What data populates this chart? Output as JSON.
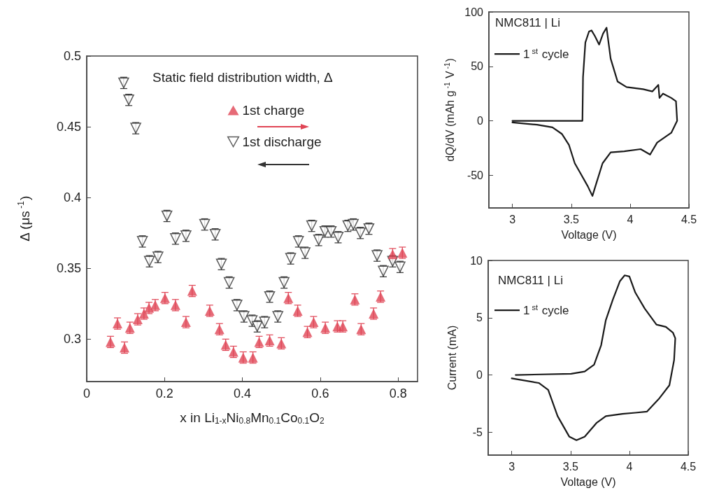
{
  "chart_data": [
    {
      "type": "scatter",
      "xlabel": "x in Li$_{1-x}$Ni$_{0.8}$Mn$_{0.1}$Co$_{0.1}$O$_{2}$",
      "ylabel": "Δ (μs$^{-1}$)",
      "annotations": [
        "Static field distribution width, Δ"
      ],
      "xlim": [
        0,
        0.85
      ],
      "xticks": [
        0,
        0.2,
        0.4,
        0.6,
        0.8
      ],
      "ylim": [
        0.27,
        0.5
      ],
      "yticks": [
        0.3,
        0.35,
        0.4,
        0.45,
        0.5
      ],
      "grid": false,
      "legend": "top right",
      "series": [
        {
          "name": "1st charge",
          "color": "#e04555",
          "marker": "triangle",
          "x": [
            0.061,
            0.079,
            0.097,
            0.111,
            0.131,
            0.147,
            0.16,
            0.176,
            0.201,
            0.228,
            0.255,
            0.271,
            0.316,
            0.341,
            0.357,
            0.377,
            0.402,
            0.427,
            0.443,
            0.47,
            0.5,
            0.518,
            0.542,
            0.567,
            0.583,
            0.613,
            0.644,
            0.658,
            0.689,
            0.705,
            0.737,
            0.755,
            0.786,
            0.811
          ],
          "values": [
            0.298,
            0.311,
            0.294,
            0.308,
            0.314,
            0.318,
            0.322,
            0.324,
            0.329,
            0.324,
            0.312,
            0.334,
            0.32,
            0.307,
            0.296,
            0.291,
            0.287,
            0.287,
            0.298,
            0.299,
            0.297,
            0.329,
            0.32,
            0.305,
            0.312,
            0.308,
            0.309,
            0.309,
            0.328,
            0.307,
            0.318,
            0.33,
            0.36,
            0.361
          ],
          "errors": [
            0.004,
            0.004,
            0.004,
            0.004,
            0.004,
            0.004,
            0.004,
            0.004,
            0.004,
            0.004,
            0.004,
            0.004,
            0.004,
            0.004,
            0.004,
            0.004,
            0.004,
            0.004,
            0.004,
            0.004,
            0.004,
            0.004,
            0.004,
            0.004,
            0.004,
            0.004,
            0.004,
            0.004,
            0.004,
            0.004,
            0.004,
            0.004,
            0.004,
            0.004
          ]
        },
        {
          "name": "1st discharge",
          "color": "#333333",
          "marker": "triangle-down",
          "x": [
            0.095,
            0.108,
            0.126,
            0.143,
            0.161,
            0.183,
            0.206,
            0.228,
            0.255,
            0.303,
            0.33,
            0.346,
            0.366,
            0.386,
            0.404,
            0.425,
            0.438,
            0.457,
            0.47,
            0.491,
            0.507,
            0.524,
            0.544,
            0.561,
            0.578,
            0.596,
            0.612,
            0.628,
            0.646,
            0.671,
            0.685,
            0.703,
            0.725,
            0.746,
            0.762,
            0.786,
            0.805
          ],
          "values": [
            0.481,
            0.469,
            0.449,
            0.369,
            0.355,
            0.358,
            0.387,
            0.371,
            0.373,
            0.381,
            0.374,
            0.353,
            0.34,
            0.324,
            0.316,
            0.313,
            0.309,
            0.312,
            0.33,
            0.316,
            0.34,
            0.357,
            0.369,
            0.361,
            0.38,
            0.37,
            0.376,
            0.376,
            0.372,
            0.38,
            0.381,
            0.375,
            0.378,
            0.359,
            0.348,
            0.355,
            0.351
          ],
          "errors": [
            0.004,
            0.004,
            0.004,
            0.004,
            0.004,
            0.004,
            0.004,
            0.004,
            0.004,
            0.004,
            0.004,
            0.004,
            0.004,
            0.004,
            0.004,
            0.004,
            0.004,
            0.004,
            0.004,
            0.004,
            0.004,
            0.004,
            0.004,
            0.004,
            0.004,
            0.004,
            0.004,
            0.004,
            0.004,
            0.004,
            0.004,
            0.004,
            0.004,
            0.004,
            0.004,
            0.004,
            0.004
          ]
        }
      ]
    },
    {
      "type": "line",
      "xlabel": "Voltage (V)",
      "ylabel": "dQ/dV (mAh g$^{-1}$ V$^{-1}$)",
      "annotations": [
        "NMC811 | Li"
      ],
      "xlim": [
        2.8,
        4.5
      ],
      "xticks": [
        3,
        3.5,
        4,
        4.5
      ],
      "ylim": [
        -80,
        100
      ],
      "yticks": [
        -50,
        0,
        50,
        100
      ],
      "grid": false,
      "legend": "top left",
      "marker": "none",
      "line_style": "solid",
      "series": [
        {
          "name": "1$^{st}$ cycle",
          "color": "#1a1a1a",
          "x": [
            3.0,
            3.3,
            3.595,
            3.6,
            3.62,
            3.651,
            3.672,
            3.7,
            3.737,
            3.77,
            3.8,
            3.835,
            3.894,
            3.97,
            4.11,
            4.19,
            4.24,
            4.25,
            4.28,
            4.35,
            4.39,
            4.4,
            4.35,
            4.23,
            4.17,
            4.09,
            3.95,
            3.835,
            3.766,
            3.717,
            3.68,
            3.64,
            3.58,
            3.53,
            3.48,
            3.42,
            3.34,
            3.21,
            3.0
          ],
          "values": [
            0,
            0,
            0,
            40,
            72,
            82,
            83,
            78,
            70,
            80,
            85.5,
            57,
            36,
            31,
            29,
            27,
            33,
            21,
            25,
            21,
            18,
            0,
            -11,
            -20,
            -31,
            -26,
            -28,
            -29,
            -39,
            -56,
            -69,
            -60,
            -48.5,
            -39,
            -22,
            -12,
            -6,
            -3.6,
            -1.5
          ]
        }
      ]
    },
    {
      "type": "line",
      "xlabel": "Voltage (V)",
      "ylabel": "Current (mA)",
      "annotations": [
        "NMC811 | Li"
      ],
      "xlim": [
        2.8,
        4.5
      ],
      "xticks": [
        3,
        3.5,
        4,
        4.5
      ],
      "ylim": [
        -7,
        10
      ],
      "yticks": [
        -5,
        0,
        5,
        10
      ],
      "grid": false,
      "legend": "top left",
      "marker": "none",
      "line_style": "solid",
      "series": [
        {
          "name": "1$^{st}$ cycle",
          "color": "#1a1a1a",
          "x": [
            3.033,
            3.505,
            3.62,
            3.7,
            3.76,
            3.8,
            3.86,
            3.92,
            3.96,
            4.0,
            4.05,
            4.13,
            4.23,
            4.31,
            4.37,
            4.39,
            4.38,
            4.34,
            4.25,
            4.15,
            4.05,
            3.94,
            3.8,
            3.72,
            3.62,
            3.55,
            3.49,
            3.39,
            3.31,
            3.23,
            3.0
          ],
          "values": [
            0,
            0.1,
            0.3,
            0.9,
            2.6,
            4.8,
            6.6,
            8.2,
            8.7,
            8.6,
            7.2,
            5.8,
            4.4,
            4.2,
            3.7,
            3.2,
            1.3,
            -0.9,
            -2.1,
            -3.2,
            -3.3,
            -3.4,
            -3.6,
            -4.2,
            -5.4,
            -5.7,
            -5.4,
            -3.6,
            -1.3,
            -0.7,
            -0.3
          ]
        }
      ]
    }
  ]
}
